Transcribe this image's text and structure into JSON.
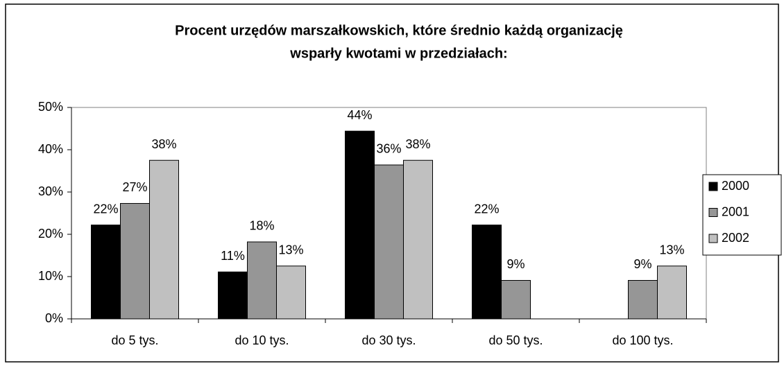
{
  "chart_data": {
    "type": "bar",
    "title_lines": [
      "Procent urzędów marszałkowskich, które średnio każdą organizację",
      "wsparły kwotami w przedziałach:"
    ],
    "categories": [
      "do 5 tys.",
      "do 10 tys.",
      "do 30 tys.",
      "do 50 tys.",
      "do 100 tys."
    ],
    "series": [
      {
        "name": "2000",
        "color": "#000000",
        "values": [
          22.2,
          11.1,
          44.4,
          22.2,
          null
        ],
        "value_labels": [
          "22%",
          "11%",
          "44%",
          "22%",
          null
        ]
      },
      {
        "name": "2001",
        "color": "#969696",
        "values": [
          27.3,
          18.2,
          36.4,
          9.1,
          9.1
        ],
        "value_labels": [
          "27%",
          "18%",
          "36%",
          "9%",
          "9%"
        ]
      },
      {
        "name": "2002",
        "color": "#c0c0c0",
        "values": [
          37.5,
          12.5,
          37.5,
          null,
          12.5
        ],
        "value_labels": [
          "38%",
          "13%",
          "38%",
          null,
          "13%"
        ]
      }
    ],
    "ylim": [
      0,
      50
    ],
    "yticks": [
      {
        "value": 0,
        "label": "0%"
      },
      {
        "value": 10,
        "label": "10%"
      },
      {
        "value": 20,
        "label": "20%"
      },
      {
        "value": 30,
        "label": "30%"
      },
      {
        "value": 40,
        "label": "40%"
      },
      {
        "value": 50,
        "label": "50%"
      }
    ],
    "legend": "right"
  }
}
